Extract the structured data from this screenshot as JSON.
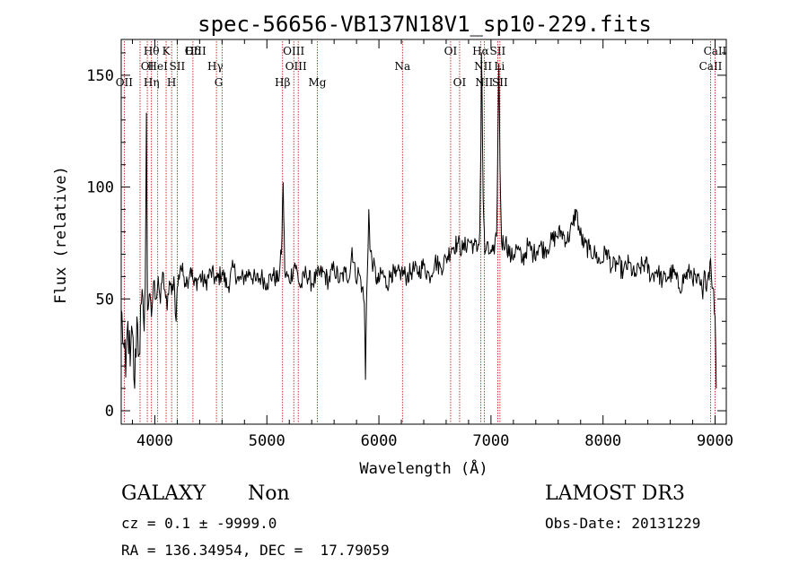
{
  "chart_data": {
    "type": "line",
    "title": "spec-56656-VB137N18V1_sp10-229.fits",
    "xlabel": "Wavelength (Å)",
    "ylabel": "Flux (relative)",
    "xlim": [
      3700,
      9100
    ],
    "ylim": [
      -6,
      166
    ],
    "xticks": [
      4000,
      5000,
      6000,
      7000,
      8000,
      9000
    ],
    "yticks": [
      0,
      50,
      100,
      150
    ],
    "x_minor_step": 200,
    "y_minor_step": 10,
    "grid": false,
    "series": [
      {
        "name": "flux",
        "anchors": [
          [
            3700,
            45
          ],
          [
            3720,
            30
          ],
          [
            3740,
            15
          ],
          [
            3760,
            40
          ],
          [
            3780,
            20
          ],
          [
            3800,
            35
          ],
          [
            3820,
            10
          ],
          [
            3840,
            42
          ],
          [
            3860,
            25
          ],
          [
            3880,
            48
          ],
          [
            3900,
            40
          ],
          [
            3915,
            55
          ],
          [
            3925,
            133
          ],
          [
            3935,
            45
          ],
          [
            3950,
            52
          ],
          [
            3970,
            42
          ],
          [
            3990,
            58
          ],
          [
            4010,
            50
          ],
          [
            4030,
            60
          ],
          [
            4050,
            48
          ],
          [
            4070,
            62
          ],
          [
            4090,
            54
          ],
          [
            4110,
            45
          ],
          [
            4130,
            58
          ],
          [
            4150,
            52
          ],
          [
            4170,
            60
          ],
          [
            4190,
            40
          ],
          [
            4200,
            55
          ],
          [
            4230,
            65
          ],
          [
            4260,
            60
          ],
          [
            4290,
            58
          ],
          [
            4320,
            64
          ],
          [
            4350,
            56
          ],
          [
            4400,
            60
          ],
          [
            4450,
            57
          ],
          [
            4500,
            62
          ],
          [
            4550,
            58
          ],
          [
            4600,
            62
          ],
          [
            4650,
            55
          ],
          [
            4700,
            64
          ],
          [
            4750,
            58
          ],
          [
            4800,
            60
          ],
          [
            4850,
            62
          ],
          [
            4900,
            58
          ],
          [
            4950,
            60
          ],
          [
            5000,
            57
          ],
          [
            5050,
            61
          ],
          [
            5100,
            58
          ],
          [
            5130,
            70
          ],
          [
            5145,
            102
          ],
          [
            5160,
            62
          ],
          [
            5200,
            58
          ],
          [
            5250,
            66
          ],
          [
            5300,
            55
          ],
          [
            5350,
            62
          ],
          [
            5400,
            57
          ],
          [
            5450,
            60
          ],
          [
            5500,
            62
          ],
          [
            5550,
            58
          ],
          [
            5600,
            64
          ],
          [
            5650,
            58
          ],
          [
            5700,
            62
          ],
          [
            5740,
            60
          ],
          [
            5760,
            73
          ],
          [
            5790,
            60
          ],
          [
            5820,
            62
          ],
          [
            5850,
            55
          ],
          [
            5870,
            48
          ],
          [
            5880,
            14
          ],
          [
            5890,
            50
          ],
          [
            5910,
            90
          ],
          [
            5920,
            72
          ],
          [
            5950,
            65
          ],
          [
            5990,
            57
          ],
          [
            6030,
            62
          ],
          [
            6070,
            56
          ],
          [
            6110,
            62
          ],
          [
            6150,
            60
          ],
          [
            6200,
            62
          ],
          [
            6250,
            60
          ],
          [
            6300,
            63
          ],
          [
            6350,
            62
          ],
          [
            6400,
            65
          ],
          [
            6450,
            60
          ],
          [
            6500,
            67
          ],
          [
            6550,
            64
          ],
          [
            6600,
            68
          ],
          [
            6650,
            73
          ],
          [
            6700,
            75
          ],
          [
            6750,
            72
          ],
          [
            6800,
            76
          ],
          [
            6850,
            74
          ],
          [
            6880,
            72
          ],
          [
            6900,
            80
          ],
          [
            6910,
            120
          ],
          [
            6915,
            160
          ],
          [
            6920,
            145
          ],
          [
            6930,
            95
          ],
          [
            6945,
            70
          ],
          [
            6960,
            74
          ],
          [
            6980,
            70
          ],
          [
            7000,
            72
          ],
          [
            7030,
            70
          ],
          [
            7050,
            78
          ],
          [
            7060,
            115
          ],
          [
            7070,
            155
          ],
          [
            7080,
            110
          ],
          [
            7095,
            75
          ],
          [
            7130,
            76
          ],
          [
            7180,
            68
          ],
          [
            7230,
            73
          ],
          [
            7280,
            67
          ],
          [
            7330,
            74
          ],
          [
            7380,
            70
          ],
          [
            7430,
            74
          ],
          [
            7480,
            72
          ],
          [
            7530,
            75
          ],
          [
            7580,
            78
          ],
          [
            7630,
            80
          ],
          [
            7680,
            76
          ],
          [
            7730,
            83
          ],
          [
            7760,
            90
          ],
          [
            7790,
            80
          ],
          [
            7830,
            74
          ],
          [
            7880,
            72
          ],
          [
            7930,
            70
          ],
          [
            7980,
            66
          ],
          [
            8030,
            72
          ],
          [
            8080,
            64
          ],
          [
            8130,
            66
          ],
          [
            8180,
            62
          ],
          [
            8230,
            66
          ],
          [
            8280,
            60
          ],
          [
            8330,
            64
          ],
          [
            8380,
            66
          ],
          [
            8430,
            60
          ],
          [
            8480,
            63
          ],
          [
            8530,
            58
          ],
          [
            8580,
            60
          ],
          [
            8630,
            62
          ],
          [
            8680,
            55
          ],
          [
            8730,
            60
          ],
          [
            8780,
            62
          ],
          [
            8830,
            58
          ],
          [
            8870,
            56
          ],
          [
            8890,
            50
          ],
          [
            8910,
            62
          ],
          [
            8930,
            58
          ],
          [
            8960,
            68
          ],
          [
            8980,
            55
          ],
          [
            9000,
            42
          ],
          [
            9010,
            10
          ]
        ]
      }
    ],
    "lines": [
      {
        "name": "OII",
        "x": 3727,
        "row": 3
      },
      {
        "name": "OI",
        "x": 3933,
        "row": 2
      },
      {
        "name": "Hθ",
        "x": 3970,
        "row": 1
      },
      {
        "name": "Hη",
        "x": 3970,
        "row": 3
      },
      {
        "name": "HeI",
        "x": 4026,
        "row": 2
      },
      {
        "name": "K",
        "x": 4101,
        "row": 1
      },
      {
        "name": "H",
        "x": 4150,
        "row": 3
      },
      {
        "name": "SII",
        "x": 4200,
        "row": 2
      },
      {
        "name": "Hδ",
        "x": 4340,
        "row": 1
      },
      {
        "name": "OIII",
        "x": 4363,
        "row": 1
      },
      {
        "name": "Hγ",
        "x": 4540,
        "row": 2
      },
      {
        "name": "G",
        "x": 4570,
        "row": 3
      },
      {
        "name": "Hβ",
        "x": 5140,
        "row": 3
      },
      {
        "name": "OIII",
        "x": 5240,
        "row": 1
      },
      {
        "name": "OIII",
        "x": 5260,
        "row": 2
      },
      {
        "name": "Mg",
        "x": 5450,
        "row": 3
      },
      {
        "name": "Na",
        "x": 6210,
        "row": 2
      },
      {
        "name": "OI",
        "x": 6640,
        "row": 1
      },
      {
        "name": "OI",
        "x": 6720,
        "row": 3
      },
      {
        "name": "Hα",
        "x": 6908,
        "row": 1
      },
      {
        "name": "NII",
        "x": 6930,
        "row": 2
      },
      {
        "name": "NII",
        "x": 6940,
        "row": 3
      },
      {
        "name": "SII",
        "x": 7060,
        "row": 1
      },
      {
        "name": "Li",
        "x": 7075,
        "row": 2
      },
      {
        "name": "SII",
        "x": 7080,
        "row": 3
      },
      {
        "name": "CaII",
        "x": 9000,
        "row": 1
      },
      {
        "name": "CaII",
        "x": 8960,
        "row": 2
      }
    ],
    "line_markers_x": [
      3727,
      3868,
      3933,
      3970,
      4026,
      4101,
      4150,
      4200,
      4340,
      4550,
      4600,
      5140,
      5240,
      5280,
      5450,
      6210,
      6640,
      6720,
      6910,
      6940,
      7060,
      7080,
      8960,
      9000
    ]
  },
  "footer": {
    "object_class": "GALAXY",
    "subclass": "Non",
    "survey": "LAMOST DR3",
    "redshift": "cz = 0.1 ± -9999.0",
    "obs_date": "Obs-Date: 20131229",
    "coords": "RA = 136.34954, DEC =  17.79059"
  }
}
